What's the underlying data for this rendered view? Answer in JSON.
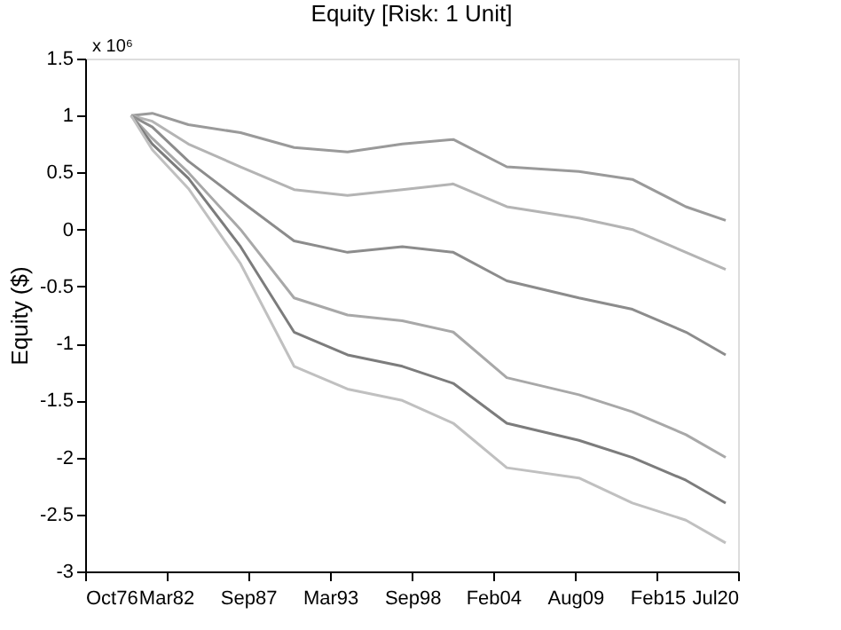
{
  "chart_data": {
    "type": "line",
    "title": "Equity [Risk: 1 Unit]",
    "ylabel": "Equity ($)",
    "annotations": [
      "x 10⁶"
    ],
    "x": [
      "1979-11",
      "1981-04",
      "1983-09",
      "1987-03",
      "1990-10",
      "1994-05",
      "1998-01",
      "2001-06",
      "2005-01",
      "2009-11",
      "2013-06",
      "2017-01",
      "2019-09"
    ],
    "series": [
      {
        "color": "#9a9a9a",
        "values": [
          1.0,
          1.02,
          0.92,
          0.85,
          0.72,
          0.68,
          0.75,
          0.79,
          0.55,
          0.51,
          0.44,
          0.2,
          0.08
        ]
      },
      {
        "color": "#b4b4b4",
        "values": [
          1.0,
          0.95,
          0.75,
          0.55,
          0.35,
          0.3,
          0.35,
          0.4,
          0.2,
          0.1,
          0.0,
          -0.2,
          -0.35
        ]
      },
      {
        "color": "#8c8c8c",
        "values": [
          1.0,
          0.9,
          0.6,
          0.25,
          -0.1,
          -0.2,
          -0.15,
          -0.2,
          -0.45,
          -0.6,
          -0.7,
          -0.9,
          -1.1
        ]
      },
      {
        "color": "#a8a8a8",
        "values": [
          1.0,
          0.8,
          0.5,
          0.0,
          -0.6,
          -0.75,
          -0.8,
          -0.9,
          -1.3,
          -1.45,
          -1.6,
          -1.8,
          -2.0
        ]
      },
      {
        "color": "#7c7c7c",
        "values": [
          1.0,
          0.75,
          0.45,
          -0.15,
          -0.9,
          -1.1,
          -1.2,
          -1.35,
          -1.7,
          -1.85,
          -2.0,
          -2.2,
          -2.4
        ]
      },
      {
        "color": "#c0c0c0",
        "values": [
          1.0,
          0.7,
          0.36,
          -0.3,
          -1.2,
          -1.4,
          -1.5,
          -1.7,
          -2.09,
          -2.18,
          -2.4,
          -2.55,
          -2.75
        ]
      }
    ],
    "xlim": [
      "1976-10",
      "2020-07"
    ],
    "xticks": [
      {
        "value": "1976-10",
        "label": "Oct76"
      },
      {
        "value": "1982-03",
        "label": "Mar82"
      },
      {
        "value": "1987-09",
        "label": "Sep87"
      },
      {
        "value": "1993-03",
        "label": "Mar93"
      },
      {
        "value": "1998-09",
        "label": "Sep98"
      },
      {
        "value": "2004-02",
        "label": "Feb04"
      },
      {
        "value": "2009-08",
        "label": "Aug09"
      },
      {
        "value": "2015-02",
        "label": "Feb15"
      },
      {
        "value": "2020-07",
        "label": "Jul20"
      }
    ],
    "ylim": [
      -3,
      1.5
    ],
    "yticks": [
      -3,
      -2.5,
      -2,
      -1.5,
      -1,
      -0.5,
      0,
      0.5,
      1,
      1.5
    ],
    "grid": false,
    "legend": false,
    "marker": "none",
    "line_style": "solid"
  }
}
